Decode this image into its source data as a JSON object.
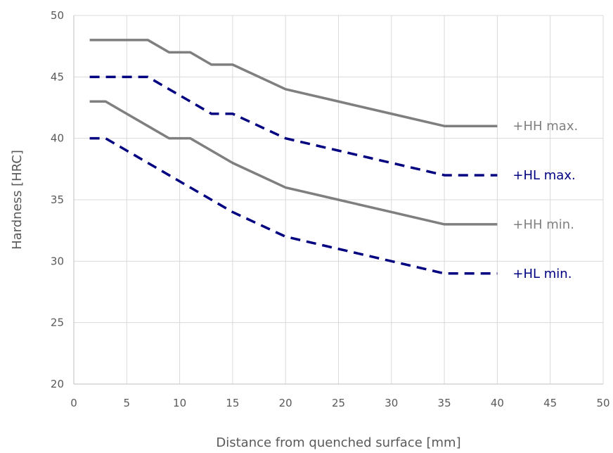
{
  "chart_data": {
    "type": "line",
    "title": "",
    "xlabel": "Distance from quenched surface [mm]",
    "ylabel": "Hardness [HRC]",
    "xlim": [
      0,
      50
    ],
    "ylim": [
      20,
      50
    ],
    "x_ticks": [
      0,
      5,
      10,
      15,
      20,
      25,
      30,
      35,
      40,
      45,
      50
    ],
    "y_ticks": [
      20,
      25,
      30,
      35,
      40,
      45,
      50
    ],
    "grid": true,
    "legend": "none (labels at right end of each line)",
    "series": [
      {
        "name": "+HH max.",
        "color": "#7f7f7f",
        "style": "solid",
        "x": [
          1.5,
          3,
          5,
          7,
          9,
          11,
          13,
          15,
          20,
          25,
          30,
          35,
          40
        ],
        "y": [
          48,
          48,
          48,
          48,
          47,
          47,
          46,
          46,
          44,
          43,
          42,
          41,
          41
        ]
      },
      {
        "name": "+HL max.",
        "color": "#000080",
        "style": "dashed",
        "x": [
          1.5,
          3,
          5,
          7,
          9,
          11,
          13,
          15,
          20,
          25,
          30,
          35,
          40
        ],
        "y": [
          45,
          45,
          45,
          45,
          44,
          43,
          42,
          42,
          40,
          39,
          38,
          37,
          37
        ]
      },
      {
        "name": "+HH min.",
        "color": "#7f7f7f",
        "style": "solid",
        "x": [
          1.5,
          3,
          5,
          7,
          9,
          11,
          13,
          15,
          20,
          25,
          30,
          35,
          40
        ],
        "y": [
          43,
          43,
          42,
          41,
          40,
          40,
          39,
          38,
          36,
          35,
          34,
          33,
          33
        ]
      },
      {
        "name": "+HL min.",
        "color": "#000080",
        "style": "dashed",
        "x": [
          1.5,
          3,
          5,
          7,
          9,
          11,
          13,
          15,
          20,
          25,
          30,
          35,
          40
        ],
        "y": [
          40,
          40,
          39,
          38,
          37,
          36,
          35,
          34,
          32,
          31,
          30,
          29,
          29
        ]
      }
    ]
  }
}
